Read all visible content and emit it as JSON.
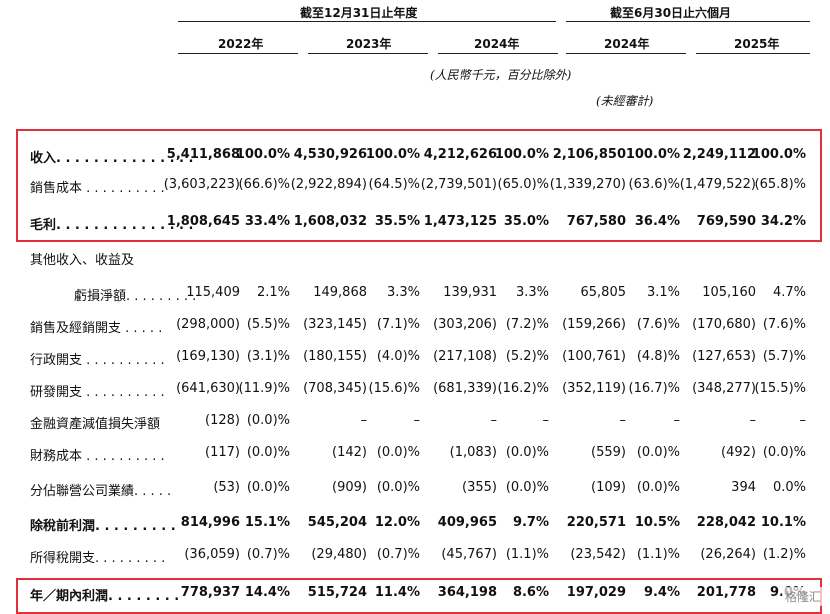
{
  "header": {
    "group_year": "截至12月31日止年度",
    "group_half": "截至6月30日止六個月",
    "years": [
      "2022年",
      "2023年",
      "2024年",
      "2024年",
      "2025年"
    ],
    "unit_note": "(人民幣千元，百分比除外)",
    "unaudited_note": "(未經審計)"
  },
  "rows": [
    {
      "label": "收入. . . . . . . . . . . . . . .",
      "bold": true,
      "cells": [
        "5,411,868",
        "100.0%",
        "4,530,926",
        "100.0%",
        "4,212,626",
        "100.0%",
        "2,106,850",
        "100.0%",
        "2,249,112",
        "100.0%"
      ]
    },
    {
      "label": "銷售成本 . . . . . . . . . .",
      "bold": false,
      "cells": [
        "(3,603,223)",
        "(66.6)%",
        "(2,922,894)",
        "(64.5)%",
        "(2,739,501)",
        "(65.0)%",
        "(1,339,270)",
        "(63.6)%",
        "(1,479,522)",
        "(65.8)%"
      ]
    },
    {
      "label": "毛利. . . . . . . . . . . . . . .",
      "bold": true,
      "cells": [
        "1,808,645",
        "33.4%",
        "1,608,032",
        "35.5%",
        "1,473,125",
        "35.0%",
        "767,580",
        "36.4%",
        "769,590",
        "34.2%"
      ]
    },
    {
      "label": "其他收入、收益及",
      "bold": false,
      "cells": [
        "",
        "",
        "",
        "",
        "",
        "",
        "",
        "",
        "",
        ""
      ]
    },
    {
      "label": "虧損淨額. . . . . . . . .",
      "bold": false,
      "indent": true,
      "cells": [
        "115,409",
        "2.1%",
        "149,868",
        "3.3%",
        "139,931",
        "3.3%",
        "65,805",
        "3.1%",
        "105,160",
        "4.7%"
      ]
    },
    {
      "label": "銷售及經銷開支 . . . . .",
      "bold": false,
      "cells": [
        "(298,000)",
        "(5.5)%",
        "(323,145)",
        "(7.1)%",
        "(303,206)",
        "(7.2)%",
        "(159,266)",
        "(7.6)%",
        "(170,680)",
        "(7.6)%"
      ]
    },
    {
      "label": "行政開支 . . . . . . . . . .",
      "bold": false,
      "cells": [
        "(169,130)",
        "(3.1)%",
        "(180,155)",
        "(4.0)%",
        "(217,108)",
        "(5.2)%",
        "(100,761)",
        "(4.8)%",
        "(127,653)",
        "(5.7)%"
      ]
    },
    {
      "label": "研發開支 . . . . . . . . . .",
      "bold": false,
      "cells": [
        "(641,630)",
        "(11.9)%",
        "(708,345)",
        "(15.6)%",
        "(681,339)",
        "(16.2)%",
        "(352,119)",
        "(16.7)%",
        "(348,277)",
        "(15.5)%"
      ]
    },
    {
      "label": "金融資產減值損失淨額",
      "bold": false,
      "cells": [
        "(128)",
        "(0.0)%",
        "–",
        "–",
        "–",
        "–",
        "–",
        "–",
        "–",
        "–"
      ]
    },
    {
      "label": "財務成本 . . . . . . . . . .",
      "bold": false,
      "cells": [
        "(117)",
        "(0.0)%",
        "(142)",
        "(0.0)%",
        "(1,083)",
        "(0.0)%",
        "(559)",
        "(0.0)%",
        "(492)",
        "(0.0)%"
      ]
    },
    {
      "label": "分佔聯營公司業績. . . . .",
      "bold": false,
      "cells": [
        "(53)",
        "(0.0)%",
        "(909)",
        "(0.0)%",
        "(355)",
        "(0.0)%",
        "(109)",
        "(0.0)%",
        "394",
        "0.0%"
      ]
    },
    {
      "label": "除稅前利潤. . . . . . . . .",
      "bold": true,
      "cells": [
        "814,996",
        "15.1%",
        "545,204",
        "12.0%",
        "409,965",
        "9.7%",
        "220,571",
        "10.5%",
        "228,042",
        "10.1%"
      ]
    },
    {
      "label": "所得稅開支. . . . . . . . .",
      "bold": false,
      "cells": [
        "(36,059)",
        "(0.7)%",
        "(29,480)",
        "(0.7)%",
        "(45,767)",
        "(1.1)%",
        "(23,542)",
        "(1.1)%",
        "(26,264)",
        "(1.2)%"
      ]
    },
    {
      "label": "年／期內利潤. . . . . . . .",
      "bold": true,
      "cells": [
        "778,937",
        "14.4%",
        "515,724",
        "11.4%",
        "364,198",
        "8.6%",
        "197,029",
        "9.4%",
        "201,778",
        "9.0%"
      ]
    }
  ],
  "watermark": "格隆汇",
  "colors": {
    "highlight": "#e0303a"
  }
}
